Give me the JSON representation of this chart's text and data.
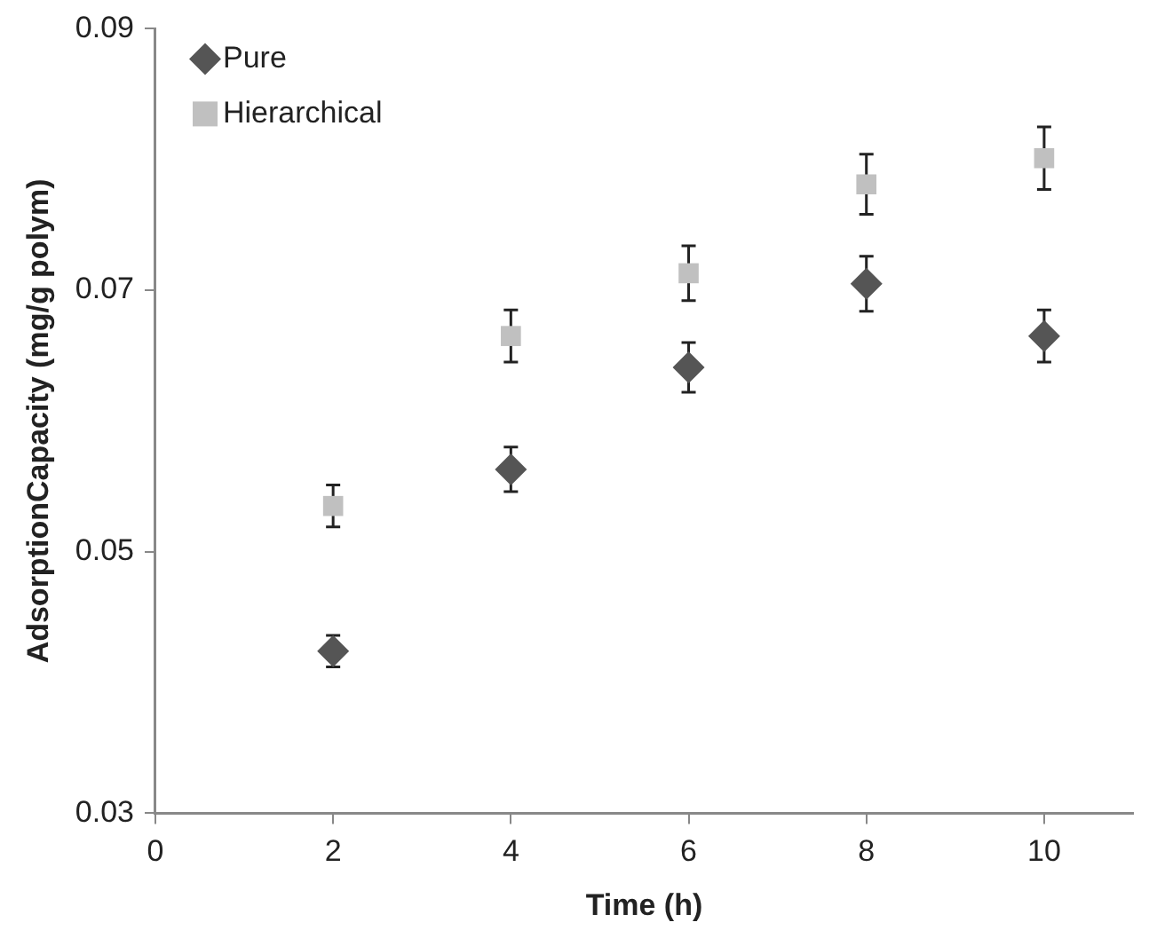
{
  "chart_data": {
    "type": "scatter",
    "xlabel": "Time (h)",
    "ylabel": "AdsorptionCapacity (mg/g polym)",
    "x": [
      2,
      4,
      6,
      8,
      10
    ],
    "series": [
      {
        "name": "Pure",
        "color": "#555555",
        "marker": "diamond",
        "values": [
          0.0424,
          0.0563,
          0.0641,
          0.0705,
          0.0665
        ],
        "errors": [
          0.0012,
          0.0017,
          0.0019,
          0.0021,
          0.002
        ]
      },
      {
        "name": "Hierarchical",
        "color": "#c0c0c0",
        "marker": "square",
        "values": [
          0.0535,
          0.0665,
          0.0713,
          0.0781,
          0.0801
        ],
        "errors": [
          0.0016,
          0.002,
          0.0021,
          0.0023,
          0.0024
        ]
      }
    ],
    "xlim": [
      0,
      11
    ],
    "xticks": [
      0,
      2,
      4,
      6,
      8,
      10
    ],
    "ylim": [
      0.03,
      0.09
    ],
    "yticks": [
      0.03,
      0.05,
      0.07,
      0.09
    ],
    "grid": false,
    "legend": "top left"
  }
}
